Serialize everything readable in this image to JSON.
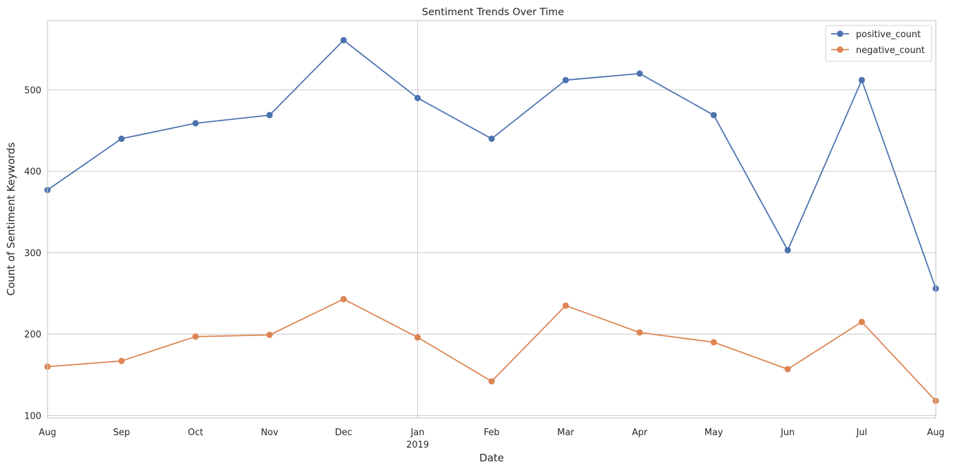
{
  "chart_data": {
    "type": "line",
    "title": "Sentiment Trends Over Time",
    "xlabel": "Date",
    "ylabel": "Count of Sentiment Keywords",
    "x": [
      "2018-08",
      "2018-09",
      "2018-10",
      "2018-11",
      "2018-12",
      "2019-01",
      "2019-02",
      "2019-03",
      "2019-04",
      "2019-05",
      "2019-06",
      "2019-07",
      "2019-08"
    ],
    "x_tick_labels": [
      "Aug",
      "Sep",
      "Oct",
      "Nov",
      "Dec",
      "Jan",
      "Feb",
      "Mar",
      "Apr",
      "May",
      "Jun",
      "Jul",
      "Aug"
    ],
    "x_tick_sublabels": [
      "",
      "",
      "",
      "",
      "",
      "2019",
      "",
      "",
      "",
      "",
      "",
      "",
      ""
    ],
    "ylim": [
      97,
      585
    ],
    "y_ticks": [
      100,
      200,
      300,
      400,
      500
    ],
    "grid": true,
    "legend_position": "top-right",
    "series": [
      {
        "name": "positive_count",
        "color": "#4c72b0",
        "values": [
          377,
          440,
          459,
          469,
          561,
          490,
          440,
          512,
          520,
          469,
          303,
          512,
          256
        ]
      },
      {
        "name": "negative_count",
        "color": "#dd8452",
        "values": [
          160,
          167,
          197,
          199,
          243,
          196,
          142,
          235,
          202,
          190,
          157,
          215,
          118
        ]
      }
    ]
  }
}
